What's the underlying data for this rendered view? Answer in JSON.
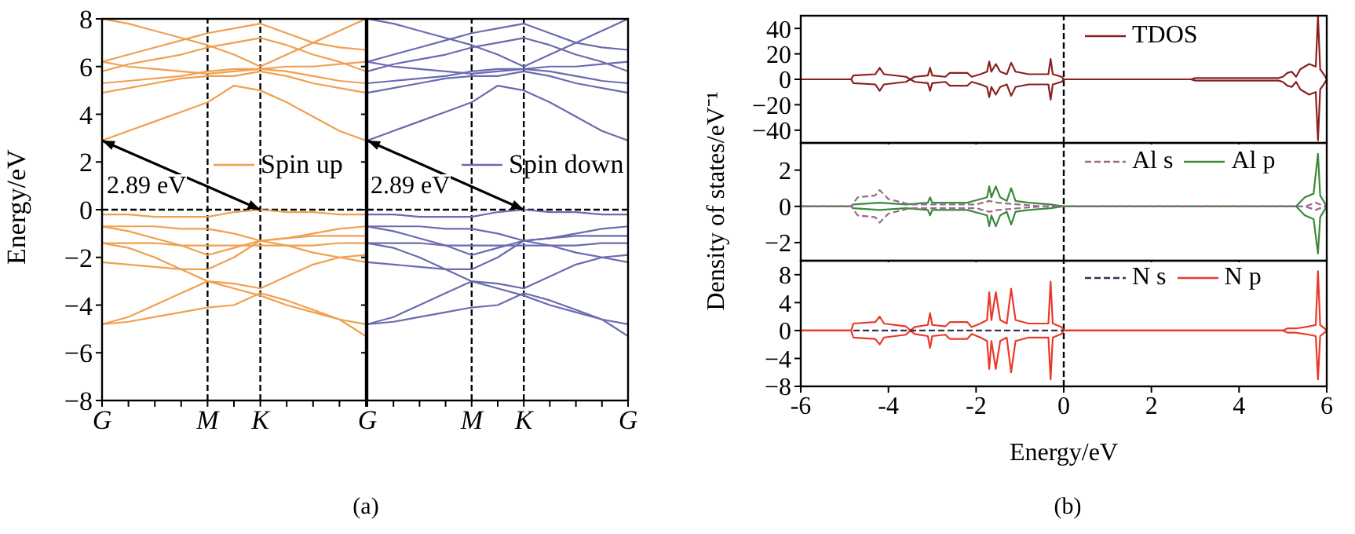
{
  "chart_data": [
    {
      "type": "line",
      "ylabel": "Energy/eV",
      "categories": [
        "G",
        null,
        null,
        null,
        "M",
        null,
        "K",
        null,
        null,
        null,
        null
      ],
      "ylim": [
        -8,
        8
      ],
      "yticks": [
        -8,
        -6,
        -4,
        -2,
        0,
        2,
        4,
        6,
        8
      ],
      "legend": "right",
      "ref_lines": [
        {
          "axis": "x",
          "value": "M",
          "line_style": "dashed",
          "color": "#000000"
        },
        {
          "axis": "x",
          "value": "K",
          "line_style": "dashed",
          "color": "#000000"
        },
        {
          "axis": "y",
          "value": 0,
          "line_style": "dashed",
          "color": "#000000"
        }
      ],
      "annotations": [
        "2.89 eV",
        "(a)"
      ],
      "series": [
        {
          "name": "Spin up",
          "color": "#f0a050",
          "values": [
            -0.2,
            -0.2,
            -0.3,
            -0.3,
            -0.3,
            -0.1,
            0,
            -0.1,
            -0.1,
            -0.2,
            -0.2
          ]
        },
        {
          "color": "#f0a050",
          "values": [
            -0.7,
            -0.7,
            -0.7,
            -0.8,
            -0.8,
            -1.0,
            -1.3,
            -1.2,
            -1.0,
            -0.8,
            -0.7
          ]
        },
        {
          "color": "#f0a050",
          "values": [
            -0.7,
            -0.9,
            -1.2,
            -1.5,
            -1.9,
            -1.6,
            -1.3,
            -1.2,
            -1.1,
            -1.1,
            -1.1
          ]
        },
        {
          "color": "#f0a050",
          "values": [
            -1.4,
            -1.4,
            -1.4,
            -1.5,
            -1.5,
            -1.5,
            -1.5,
            -1.5,
            -1.5,
            -1.4,
            -1.4
          ]
        },
        {
          "color": "#f0a050",
          "values": [
            -1.4,
            -1.6,
            -2.0,
            -2.5,
            -3.0,
            -3.1,
            -3.3,
            -2.8,
            -2.3,
            -2.0,
            -1.9
          ]
        },
        {
          "color": "#f0a050",
          "values": [
            -2.2,
            -2.3,
            -2.4,
            -2.5,
            -2.5,
            -2.0,
            -1.3,
            -1.5,
            -1.8,
            -2.0,
            -2.2
          ]
        },
        {
          "color": "#f0a050",
          "values": [
            -4.8,
            -4.7,
            -4.5,
            -4.3,
            -4.1,
            -4.0,
            -3.5,
            -3.8,
            -4.2,
            -4.6,
            -4.8
          ]
        },
        {
          "color": "#f0a050",
          "values": [
            -4.8,
            -4.5,
            -4.0,
            -3.5,
            -3.0,
            -3.3,
            -3.6,
            -4.0,
            -4.3,
            -4.6,
            -5.3
          ]
        },
        {
          "color": "#f0a050",
          "values": [
            2.9,
            3.3,
            3.7,
            4.1,
            4.5,
            5.2,
            5.0,
            4.5,
            3.9,
            3.3,
            2.9
          ]
        },
        {
          "color": "#f0a050",
          "values": [
            4.9,
            5.1,
            5.3,
            5.5,
            5.6,
            5.6,
            5.8,
            5.6,
            5.3,
            5.1,
            4.9
          ]
        },
        {
          "color": "#f0a050",
          "values": [
            5.3,
            5.4,
            5.5,
            5.6,
            5.8,
            5.9,
            5.9,
            5.8,
            5.6,
            5.4,
            5.3
          ]
        },
        {
          "color": "#f0a050",
          "values": [
            5.8,
            6.1,
            6.3,
            6.5,
            6.8,
            7.0,
            7.2,
            6.9,
            6.5,
            6.2,
            5.8
          ]
        },
        {
          "color": "#f0a050",
          "values": [
            6.2,
            6.0,
            5.9,
            5.8,
            5.7,
            5.8,
            5.9,
            6.0,
            6.0,
            6.1,
            6.2
          ]
        },
        {
          "color": "#f0a050",
          "values": [
            8.0,
            7.8,
            7.5,
            7.2,
            6.9,
            6.5,
            6.0,
            6.5,
            7.0,
            7.5,
            8.0
          ]
        },
        {
          "color": "#f0a050",
          "values": [
            6.2,
            6.5,
            6.8,
            7.1,
            7.4,
            7.6,
            7.8,
            7.4,
            7.0,
            6.8,
            6.7
          ]
        }
      ]
    },
    {
      "type": "line",
      "tick_labels": "x",
      "categories": [
        "G",
        null,
        null,
        null,
        "M",
        null,
        "K",
        null,
        null,
        null,
        "G"
      ],
      "ylim": [
        -8,
        8
      ],
      "yticks": [
        {
          "value": -8,
          "label": null
        },
        {
          "value": -6,
          "label": null
        },
        {
          "value": -4,
          "label": null
        },
        {
          "value": -2,
          "label": null
        },
        {
          "value": 0,
          "label": null
        },
        {
          "value": 2,
          "label": null
        },
        {
          "value": 4,
          "label": null
        },
        {
          "value": 6,
          "label": null
        },
        {
          "value": 8,
          "label": null
        }
      ],
      "legend": "right",
      "ref_lines": [
        {
          "axis": "x",
          "value": "M",
          "line_style": "dashed",
          "color": "#000000"
        },
        {
          "axis": "x",
          "value": "K",
          "line_style": "dashed",
          "color": "#000000"
        },
        {
          "axis": "y",
          "value": 0,
          "line_style": "dashed",
          "color": "#000000"
        }
      ],
      "annotations": [
        "2.89 eV"
      ],
      "series": [
        {
          "name": "Spin down",
          "color": "#6b6bb0",
          "values": [
            -0.2,
            -0.2,
            -0.3,
            -0.3,
            -0.3,
            -0.1,
            0,
            -0.1,
            -0.1,
            -0.2,
            -0.2
          ]
        },
        {
          "color": "#6b6bb0",
          "values": [
            -0.7,
            -0.7,
            -0.7,
            -0.8,
            -0.8,
            -1.0,
            -1.3,
            -1.2,
            -1.0,
            -0.8,
            -0.7
          ]
        },
        {
          "color": "#6b6bb0",
          "values": [
            -0.7,
            -0.9,
            -1.2,
            -1.5,
            -1.9,
            -1.6,
            -1.3,
            -1.2,
            -1.1,
            -1.1,
            -1.1
          ]
        },
        {
          "color": "#6b6bb0",
          "values": [
            -1.4,
            -1.4,
            -1.4,
            -1.5,
            -1.5,
            -1.5,
            -1.5,
            -1.5,
            -1.5,
            -1.4,
            -1.4
          ]
        },
        {
          "color": "#6b6bb0",
          "values": [
            -1.4,
            -1.6,
            -2.0,
            -2.5,
            -3.0,
            -3.1,
            -3.3,
            -2.8,
            -2.3,
            -2.0,
            -1.9
          ]
        },
        {
          "color": "#6b6bb0",
          "values": [
            -2.2,
            -2.3,
            -2.4,
            -2.5,
            -2.5,
            -2.0,
            -1.3,
            -1.5,
            -1.8,
            -2.0,
            -2.2
          ]
        },
        {
          "color": "#6b6bb0",
          "values": [
            -4.8,
            -4.7,
            -4.5,
            -4.3,
            -4.1,
            -4.0,
            -3.5,
            -3.8,
            -4.2,
            -4.6,
            -4.8
          ]
        },
        {
          "color": "#6b6bb0",
          "values": [
            -4.8,
            -4.5,
            -4.0,
            -3.5,
            -3.0,
            -3.3,
            -3.6,
            -4.0,
            -4.3,
            -4.6,
            -5.3
          ]
        },
        {
          "color": "#6b6bb0",
          "values": [
            2.9,
            3.3,
            3.7,
            4.1,
            4.5,
            5.2,
            5.0,
            4.5,
            3.9,
            3.3,
            2.9
          ]
        },
        {
          "color": "#6b6bb0",
          "values": [
            4.9,
            5.1,
            5.3,
            5.5,
            5.6,
            5.6,
            5.8,
            5.6,
            5.3,
            5.1,
            4.9
          ]
        },
        {
          "color": "#6b6bb0",
          "values": [
            5.3,
            5.4,
            5.5,
            5.6,
            5.8,
            5.9,
            5.9,
            5.8,
            5.6,
            5.4,
            5.3
          ]
        },
        {
          "color": "#6b6bb0",
          "values": [
            5.8,
            6.1,
            6.3,
            6.5,
            6.8,
            7.0,
            7.2,
            6.9,
            6.5,
            6.2,
            5.8
          ]
        },
        {
          "color": "#6b6bb0",
          "values": [
            6.2,
            6.0,
            5.9,
            5.8,
            5.7,
            5.8,
            5.9,
            6.0,
            6.0,
            6.1,
            6.2
          ]
        },
        {
          "color": "#6b6bb0",
          "values": [
            8.0,
            7.8,
            7.5,
            7.2,
            6.9,
            6.5,
            6.0,
            6.5,
            7.0,
            7.5,
            8.0
          ]
        },
        {
          "color": "#6b6bb0",
          "values": [
            6.2,
            6.5,
            6.8,
            7.1,
            7.4,
            7.6,
            7.8,
            7.4,
            7.0,
            6.8,
            6.7
          ]
        }
      ]
    },
    {
      "type": "line",
      "tick_labels": "y",
      "xlim": [
        -6,
        6
      ],
      "xticks": [
        {
          "value": -6,
          "label": null
        },
        {
          "value": -4,
          "label": null
        },
        {
          "value": -2,
          "label": null
        },
        {
          "value": 0,
          "label": null
        },
        {
          "value": 2,
          "label": null
        },
        {
          "value": 4,
          "label": null
        },
        {
          "value": 6,
          "label": null
        }
      ],
      "ylim": [
        -50,
        50
      ],
      "yticks": [
        -40,
        -20,
        0,
        20,
        40
      ],
      "legend": "top",
      "ref_lines": [
        {
          "axis": "x",
          "value": 0,
          "line_style": "dashed",
          "color": "#000000"
        }
      ],
      "series": [
        {
          "name": "TDOS",
          "color": "#8b2020",
          "x": [
            -6,
            -4.85,
            -4.8,
            -4.3,
            -4.2,
            -4.1,
            -3.6,
            -3.5,
            -3.4,
            -3.1,
            -3.05,
            -3.0,
            -2.7,
            -2.6,
            -2.2,
            -2.1,
            -1.9,
            -1.75,
            -1.7,
            -1.65,
            -1.55,
            -1.45,
            -1.3,
            -1.2,
            -1.1,
            -0.8,
            -0.35,
            -0.3,
            -0.25,
            -0.05,
            0,
            2.9,
            3.0,
            4.9,
            5.0,
            5.1,
            5.2,
            5.3,
            5.4,
            5.6,
            5.75,
            5.8,
            5.85,
            5.95,
            6
          ],
          "values": [
            0,
            0,
            3,
            4,
            9,
            4,
            2,
            0,
            2,
            3,
            9,
            3,
            2,
            5,
            5,
            2,
            4,
            6,
            14,
            6,
            12,
            6,
            4,
            13,
            6,
            4,
            4,
            16,
            4,
            2,
            0,
            0,
            1,
            1,
            2,
            5,
            6,
            2,
            8,
            12,
            10,
            50,
            8,
            3,
            0
          ]
        },
        {
          "color": "#8b2020",
          "x": [
            -6,
            -4.85,
            -4.8,
            -4.3,
            -4.2,
            -4.1,
            -3.6,
            -3.5,
            -3.4,
            -3.1,
            -3.05,
            -3.0,
            -2.7,
            -2.6,
            -2.2,
            -2.1,
            -1.9,
            -1.75,
            -1.7,
            -1.65,
            -1.55,
            -1.45,
            -1.3,
            -1.2,
            -1.1,
            -0.8,
            -0.35,
            -0.3,
            -0.25,
            -0.05,
            0,
            2.9,
            3.0,
            4.9,
            5.0,
            5.1,
            5.2,
            5.3,
            5.4,
            5.6,
            5.75,
            5.8,
            5.85,
            5.95,
            6
          ],
          "values": [
            0,
            0,
            -3,
            -4,
            -9,
            -4,
            -2,
            0,
            -2,
            -3,
            -9,
            -3,
            -2,
            -5,
            -5,
            -2,
            -4,
            -6,
            -14,
            -6,
            -12,
            -6,
            -4,
            -13,
            -6,
            -4,
            -4,
            -16,
            -4,
            -2,
            0,
            0,
            -1,
            -1,
            -2,
            -5,
            -6,
            -2,
            -8,
            -12,
            -10,
            -48,
            -8,
            -3,
            0
          ]
        }
      ]
    },
    {
      "type": "line",
      "tick_labels": "y",
      "ylabel": "Density of states/eV⁻¹",
      "xlim": [
        -6,
        6
      ],
      "xticks": [
        {
          "value": -6,
          "label": null
        },
        {
          "value": -4,
          "label": null
        },
        {
          "value": -2,
          "label": null
        },
        {
          "value": 0,
          "label": null
        },
        {
          "value": 2,
          "label": null
        },
        {
          "value": 4,
          "label": null
        },
        {
          "value": 6,
          "label": null
        }
      ],
      "ylim": [
        -3,
        3.5
      ],
      "yticks": [
        -2,
        0,
        2
      ],
      "legend": "top",
      "ref_lines": [
        {
          "axis": "x",
          "value": 0,
          "line_style": "dashed",
          "color": "#000000"
        }
      ],
      "series": [
        {
          "name": "Al s",
          "color": "#9a6a8a",
          "line_style": "dashed",
          "x": [
            -6,
            -4.85,
            -4.7,
            -4.3,
            -4.2,
            -4.0,
            -3.5,
            -2.0,
            -1.7,
            -1.5,
            -0.5,
            0,
            5.5,
            5.75,
            5.85,
            6
          ],
          "values": [
            0,
            0,
            0.5,
            0.6,
            0.9,
            0.4,
            0.1,
            0.1,
            0.3,
            0.2,
            0,
            0,
            0,
            0.2,
            0.1,
            0
          ]
        },
        {
          "color": "#9a6a8a",
          "line_style": "dashed",
          "x": [
            -6,
            -4.85,
            -4.7,
            -4.3,
            -4.2,
            -4.0,
            -3.5,
            -2.0,
            -1.7,
            -1.5,
            -0.5,
            0,
            5.5,
            5.75,
            5.85,
            6
          ],
          "values": [
            0,
            0,
            -0.5,
            -0.6,
            -0.9,
            -0.4,
            -0.1,
            -0.1,
            -0.3,
            -0.2,
            0,
            0,
            0,
            -0.2,
            -0.1,
            0
          ]
        },
        {
          "name": "Al p",
          "color": "#3a8a3a",
          "x": [
            -6,
            -4.85,
            -4.8,
            -4.2,
            -3.6,
            -3.1,
            -3.05,
            -3.0,
            -2.6,
            -2.2,
            -1.9,
            -1.75,
            -1.7,
            -1.65,
            -1.55,
            -1.45,
            -1.3,
            -1.2,
            -1.1,
            -0.8,
            -0.3,
            0,
            5.3,
            5.5,
            5.7,
            5.8,
            5.85,
            6
          ],
          "values": [
            0,
            0,
            0.1,
            0.2,
            0.1,
            0.2,
            0.5,
            0.2,
            0.2,
            0.2,
            0.4,
            0.5,
            1.1,
            0.5,
            1.1,
            0.5,
            0.3,
            1.0,
            0.3,
            0.2,
            0.1,
            0,
            0,
            0.5,
            0.7,
            2.9,
            0.6,
            0
          ]
        },
        {
          "color": "#3a8a3a",
          "x": [
            -6,
            -4.85,
            -4.8,
            -4.2,
            -3.6,
            -3.1,
            -3.05,
            -3.0,
            -2.6,
            -2.2,
            -1.9,
            -1.75,
            -1.7,
            -1.65,
            -1.55,
            -1.45,
            -1.3,
            -1.2,
            -1.1,
            -0.8,
            -0.3,
            0,
            5.3,
            5.5,
            5.7,
            5.8,
            5.85,
            6
          ],
          "values": [
            0,
            0,
            -0.1,
            -0.2,
            -0.1,
            -0.2,
            -0.5,
            -0.2,
            -0.2,
            -0.2,
            -0.4,
            -0.5,
            -1.1,
            -0.5,
            -1.1,
            -0.5,
            -0.3,
            -1.0,
            -0.3,
            -0.2,
            -0.1,
            0,
            0,
            -0.5,
            -0.7,
            -2.6,
            -0.6,
            0
          ]
        }
      ]
    },
    {
      "type": "line",
      "xlabel": "Energy/eV",
      "xlim": [
        -6,
        6
      ],
      "xticks": [
        -6,
        -4,
        -2,
        0,
        2,
        4,
        6
      ],
      "ylim": [
        -8,
        10
      ],
      "yticks": [
        -8,
        -4,
        0,
        4,
        8
      ],
      "legend": "top",
      "ref_lines": [
        {
          "axis": "x",
          "value": 0,
          "line_style": "dashed",
          "color": "#000000"
        }
      ],
      "annotations": [
        "(b)"
      ],
      "series": [
        {
          "name": "N s",
          "color": "#333355",
          "line_style": "dashed",
          "x": [
            -4.8,
            0
          ],
          "values": [
            0,
            0
          ]
        },
        {
          "name": "N p",
          "color": "#e83a2a",
          "x": [
            -6,
            -4.85,
            -4.8,
            -4.3,
            -4.2,
            -4.1,
            -3.6,
            -3.5,
            -3.4,
            -3.1,
            -3.05,
            -3.0,
            -2.7,
            -2.6,
            -2.2,
            -2.1,
            -1.9,
            -1.75,
            -1.7,
            -1.65,
            -1.55,
            -1.45,
            -1.3,
            -1.2,
            -1.1,
            -0.8,
            -0.35,
            -0.3,
            -0.25,
            -0.05,
            0,
            5.0,
            5.1,
            5.3,
            5.6,
            5.75,
            5.8,
            5.85,
            5.95,
            6
          ],
          "values": [
            0,
            0,
            1,
            1.2,
            2,
            1,
            0.6,
            0,
            0.5,
            0.8,
            2.5,
            0.8,
            0.6,
            1.2,
            1.2,
            0.5,
            1,
            1.5,
            5.5,
            1.5,
            5.5,
            1.5,
            1,
            6,
            1.5,
            1,
            1,
            7,
            1,
            0.5,
            0,
            0,
            0.3,
            0.3,
            0.6,
            0.8,
            8.5,
            0.8,
            0.3,
            0
          ]
        },
        {
          "color": "#e83a2a",
          "x": [
            -6,
            -4.85,
            -4.8,
            -4.3,
            -4.2,
            -4.1,
            -3.6,
            -3.5,
            -3.4,
            -3.1,
            -3.05,
            -3.0,
            -2.7,
            -2.6,
            -2.2,
            -2.1,
            -1.9,
            -1.75,
            -1.7,
            -1.65,
            -1.55,
            -1.45,
            -1.3,
            -1.2,
            -1.1,
            -0.8,
            -0.35,
            -0.3,
            -0.25,
            -0.05,
            0,
            5.0,
            5.1,
            5.3,
            5.6,
            5.75,
            5.8,
            5.85,
            5.95,
            6
          ],
          "values": [
            0,
            0,
            -1,
            -1.2,
            -2,
            -1,
            -0.6,
            0,
            -0.5,
            -0.8,
            -2.5,
            -0.8,
            -0.6,
            -1.2,
            -1.2,
            -0.5,
            -1,
            -1.5,
            -5.5,
            -1.5,
            -5.5,
            -1.5,
            -1,
            -6,
            -1.5,
            -1,
            -1,
            -7,
            -1,
            -0.5,
            0,
            0,
            -0.3,
            -0.3,
            -0.6,
            -0.8,
            -7,
            -0.8,
            -0.3,
            0
          ]
        }
      ]
    }
  ]
}
